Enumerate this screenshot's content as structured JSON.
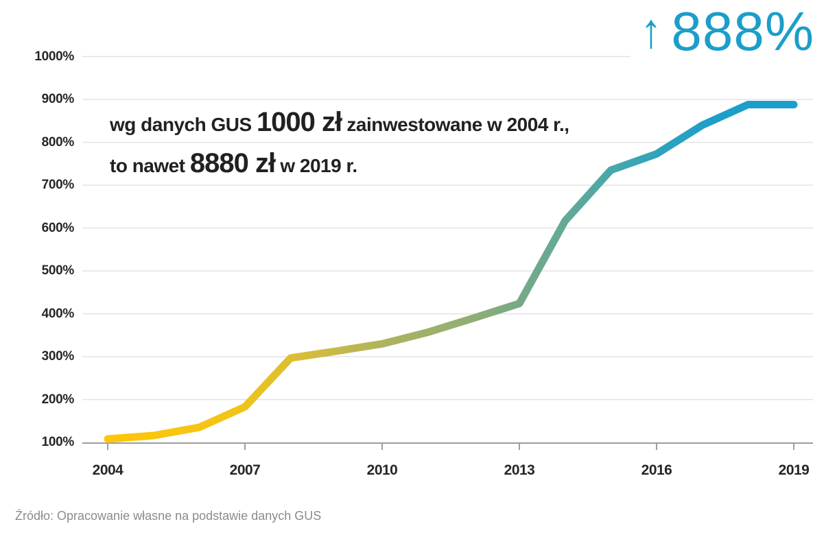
{
  "chart_data": {
    "type": "line",
    "title": "",
    "xlabel": "",
    "ylabel": "",
    "x": [
      2004,
      2005,
      2006,
      2007,
      2008,
      2009,
      2010,
      2011,
      2012,
      2013,
      2014,
      2015,
      2016,
      2017,
      2018,
      2019
    ],
    "values": [
      108,
      116,
      135,
      183,
      297,
      313,
      330,
      357,
      390,
      424,
      617,
      735,
      773,
      840,
      888,
      888
    ],
    "xlim": [
      2004,
      2019
    ],
    "ylim": [
      100,
      1000
    ],
    "y_ticks": [
      100,
      200,
      300,
      400,
      500,
      600,
      700,
      800,
      900,
      1000
    ],
    "y_tick_labels": [
      "100%",
      "200%",
      "300%",
      "400%",
      "500%",
      "600%",
      "700%",
      "800%",
      "900%",
      "1000%"
    ],
    "x_tick_labels": [
      "2004",
      "2007",
      "2010",
      "2013",
      "2016",
      "2019"
    ],
    "grid": true,
    "legend": false,
    "line_width": 11,
    "line_gradient": [
      {
        "at": 0.0,
        "color": "#ffc608"
      },
      {
        "at": 0.18,
        "color": "#f3c416"
      },
      {
        "at": 0.28,
        "color": "#d9be38"
      },
      {
        "at": 0.4,
        "color": "#afb35e"
      },
      {
        "at": 0.53,
        "color": "#90ae74"
      },
      {
        "at": 0.6,
        "color": "#76a987"
      },
      {
        "at": 0.67,
        "color": "#63a997"
      },
      {
        "at": 0.74,
        "color": "#46a7ac"
      },
      {
        "at": 0.8,
        "color": "#2fa3bc"
      },
      {
        "at": 0.88,
        "color": "#1d9fc7"
      },
      {
        "at": 1.0,
        "color": "#1b9ec9"
      }
    ],
    "annotations": {
      "big_stat": {
        "arrow": "↑",
        "value": "888%",
        "color": "#1b9ec9"
      },
      "note_line1": {
        "prefix": "wg danych GUS ",
        "emphasis": "1000 zł",
        "suffix": " zainwestowane w 2004 r.,"
      },
      "note_line2": {
        "prefix": "to nawet ",
        "emphasis": "8880 zł",
        "suffix": " w 2019 r."
      },
      "source": "Źródło: Opracowanie własne na podstawie danych GUS"
    },
    "colors": {
      "grid": "#e3e3e3",
      "axis": "#9d9d9d",
      "tick_label": "#262626",
      "annotation_text": "#212121",
      "source_text": "#8b8b8b",
      "accent": "#1b9ec9",
      "line_start": "#ffc608",
      "line_end": "#1b9ec9"
    }
  }
}
